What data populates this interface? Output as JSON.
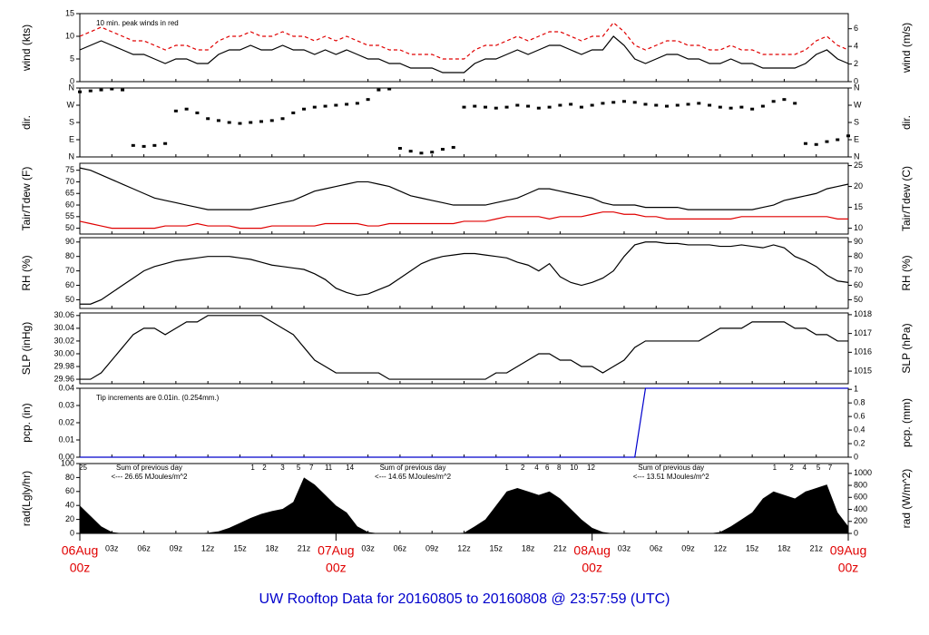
{
  "title": "UW Rooftop Data for 20160805  to  20160808 @ 23:57:59  (UTC)",
  "x_axis": {
    "xlim": [
      0,
      72
    ],
    "x": [
      0,
      1,
      2,
      3,
      4,
      5,
      6,
      7,
      8,
      9,
      10,
      11,
      12,
      13,
      14,
      15,
      16,
      17,
      18,
      19,
      20,
      21,
      22,
      23,
      24,
      25,
      26,
      27,
      28,
      29,
      30,
      31,
      32,
      33,
      34,
      35,
      36,
      37,
      38,
      39,
      40,
      41,
      42,
      43,
      44,
      45,
      46,
      47,
      48,
      49,
      50,
      51,
      52,
      53,
      54,
      55,
      56,
      57,
      58,
      59,
      60,
      61,
      62,
      63,
      64,
      65,
      66,
      67,
      68,
      69,
      70,
      71,
      72
    ],
    "xticks": [
      {
        "value": 3,
        "label": "03z"
      },
      {
        "value": 6,
        "label": "06z"
      },
      {
        "value": 9,
        "label": "09z"
      },
      {
        "value": 12,
        "label": "12z"
      },
      {
        "value": 15,
        "label": "15z"
      },
      {
        "value": 18,
        "label": "18z"
      },
      {
        "value": 21,
        "label": "21z"
      },
      {
        "value": 27,
        "label": "03z"
      },
      {
        "value": 30,
        "label": "06z"
      },
      {
        "value": 33,
        "label": "09z"
      },
      {
        "value": 36,
        "label": "12z"
      },
      {
        "value": 39,
        "label": "15z"
      },
      {
        "value": 42,
        "label": "18z"
      },
      {
        "value": 45,
        "label": "21z"
      },
      {
        "value": 51,
        "label": "03z"
      },
      {
        "value": 54,
        "label": "06z"
      },
      {
        "value": 57,
        "label": "09z"
      },
      {
        "value": 60,
        "label": "12z"
      },
      {
        "value": 63,
        "label": "15z"
      },
      {
        "value": 66,
        "label": "18z"
      },
      {
        "value": 69,
        "label": "21z"
      }
    ],
    "day_ticks": [
      {
        "value": 0,
        "label": "06Aug",
        "sublabel": "00z"
      },
      {
        "value": 24,
        "label": "07Aug",
        "sublabel": "00z"
      },
      {
        "value": 48,
        "label": "08Aug",
        "sublabel": "00z"
      },
      {
        "value": 72,
        "label": "09Aug",
        "sublabel": "00z"
      }
    ]
  },
  "chart_data": [
    {
      "type": "line",
      "ylabel": "wind (kts)",
      "y2label": "wind (m/s)",
      "annotation": "10 min. peak winds in red",
      "ylim": [
        0,
        15
      ],
      "yticks": [
        0,
        5,
        10,
        15
      ],
      "y2lim": [
        0,
        7.717
      ],
      "y2ticks": [
        0,
        2,
        4,
        6
      ],
      "series": [
        {
          "name": "peak",
          "color": "#e00000",
          "style": "dash",
          "values": [
            10,
            11,
            12,
            11,
            10,
            9,
            9,
            8,
            7,
            8,
            8,
            7,
            7,
            9,
            10,
            10,
            11,
            10,
            10,
            11,
            10,
            10,
            9,
            10,
            9,
            10,
            9,
            8,
            8,
            7,
            7,
            6,
            6,
            6,
            5,
            5,
            5,
            7,
            8,
            8,
            9,
            10,
            9,
            10,
            11,
            11,
            10,
            9,
            10,
            10,
            13,
            11,
            8,
            7,
            8,
            9,
            9,
            8,
            8,
            7,
            7,
            8,
            7,
            7,
            6,
            6,
            6,
            6,
            7,
            9,
            10,
            8,
            7
          ]
        },
        {
          "name": "wind",
          "color": "#000000",
          "values": [
            7,
            8,
            9,
            8,
            7,
            6,
            6,
            5,
            4,
            5,
            5,
            4,
            4,
            6,
            7,
            7,
            8,
            7,
            7,
            8,
            7,
            7,
            6,
            7,
            6,
            7,
            6,
            5,
            5,
            4,
            4,
            3,
            3,
            3,
            2,
            2,
            2,
            4,
            5,
            5,
            6,
            7,
            6,
            7,
            8,
            8,
            7,
            6,
            7,
            7,
            10,
            8,
            5,
            4,
            5,
            6,
            6,
            5,
            5,
            4,
            4,
            5,
            4,
            4,
            3,
            3,
            3,
            3,
            4,
            6,
            7,
            5,
            4
          ]
        }
      ]
    },
    {
      "type": "scatter",
      "ylabel": "dir.",
      "y2label": "dir.",
      "ylim": [
        0,
        360
      ],
      "yticks": [
        {
          "value": 0,
          "label": "N"
        },
        {
          "value": 90,
          "label": "E"
        },
        {
          "value": 180,
          "label": "S"
        },
        {
          "value": 270,
          "label": "W"
        },
        {
          "value": 360,
          "label": "N"
        }
      ],
      "y2lim": [
        0,
        360
      ],
      "y2ticks": [
        {
          "value": 0,
          "label": "N"
        },
        {
          "value": 90,
          "label": "E"
        },
        {
          "value": 180,
          "label": "S"
        },
        {
          "value": 270,
          "label": "W"
        },
        {
          "value": 360,
          "label": "N"
        }
      ],
      "series": [
        {
          "name": "dir",
          "color": "#000000",
          "values": [
            340,
            345,
            350,
            355,
            350,
            60,
            55,
            60,
            70,
            240,
            250,
            230,
            200,
            190,
            180,
            175,
            180,
            185,
            190,
            200,
            230,
            250,
            260,
            265,
            270,
            275,
            280,
            300,
            350,
            355,
            45,
            30,
            20,
            25,
            40,
            50,
            260,
            265,
            260,
            255,
            260,
            270,
            265,
            255,
            260,
            270,
            275,
            260,
            270,
            280,
            285,
            290,
            285,
            275,
            270,
            265,
            270,
            275,
            280,
            270,
            260,
            255,
            260,
            250,
            265,
            290,
            300,
            280,
            70,
            65,
            80,
            90,
            110
          ]
        }
      ]
    },
    {
      "type": "line",
      "ylabel": "Tair/Tdew (F)",
      "y2label": "Tair/Tdew (C)",
      "ylim": [
        47.5,
        78
      ],
      "yticks": [
        50,
        55,
        60,
        65,
        70,
        75
      ],
      "y2lim": [
        8.61,
        25.56
      ],
      "y2ticks": [
        10,
        15,
        20,
        25
      ],
      "series": [
        {
          "name": "Tair",
          "color": "#000000",
          "values": [
            76,
            75,
            73,
            71,
            69,
            67,
            65,
            63,
            62,
            61,
            60,
            59,
            58,
            58,
            58,
            58,
            58,
            59,
            60,
            61,
            62,
            64,
            66,
            67,
            68,
            69,
            70,
            70,
            69,
            68,
            66,
            64,
            63,
            62,
            61,
            60,
            60,
            60,
            60,
            61,
            62,
            63,
            65,
            67,
            67,
            66,
            65,
            64,
            63,
            61,
            60,
            60,
            60,
            59,
            59,
            59,
            59,
            58,
            58,
            58,
            58,
            58,
            58,
            58,
            59,
            60,
            62,
            63,
            64,
            65,
            67,
            68,
            69
          ]
        },
        {
          "name": "Tdew",
          "color": "#e00000",
          "values": [
            53,
            52,
            51,
            50,
            50,
            50,
            50,
            50,
            51,
            51,
            51,
            52,
            51,
            51,
            51,
            50,
            50,
            50,
            51,
            51,
            51,
            51,
            51,
            52,
            52,
            52,
            52,
            51,
            51,
            52,
            52,
            52,
            52,
            52,
            52,
            52,
            53,
            53,
            53,
            54,
            55,
            55,
            55,
            55,
            54,
            55,
            55,
            55,
            56,
            57,
            57,
            56,
            56,
            55,
            55,
            54,
            54,
            54,
            54,
            54,
            54,
            54,
            55,
            55,
            55,
            55,
            55,
            55,
            55,
            55,
            55,
            54,
            54
          ]
        }
      ]
    },
    {
      "type": "line",
      "ylabel": "RH (%)",
      "y2label": "RH (%)",
      "ylim": [
        44,
        93
      ],
      "yticks": [
        50,
        60,
        70,
        80,
        90
      ],
      "y2lim": [
        44,
        93
      ],
      "y2ticks": [
        50,
        60,
        70,
        80,
        90
      ],
      "series": [
        {
          "name": "RH",
          "color": "#000000",
          "values": [
            47,
            47,
            50,
            55,
            60,
            65,
            70,
            73,
            75,
            77,
            78,
            79,
            80,
            80,
            80,
            79,
            78,
            76,
            74,
            73,
            72,
            71,
            68,
            64,
            58,
            55,
            53,
            54,
            57,
            60,
            65,
            70,
            75,
            78,
            80,
            81,
            82,
            82,
            81,
            80,
            79,
            76,
            74,
            70,
            75,
            66,
            62,
            60,
            62,
            65,
            70,
            80,
            88,
            90,
            90,
            89,
            89,
            88,
            88,
            88,
            87,
            87,
            88,
            87,
            86,
            88,
            86,
            80,
            77,
            73,
            67,
            63,
            62
          ]
        }
      ]
    },
    {
      "type": "line",
      "ylabel": "SLP (inHg)",
      "y2label": "SLP (hPa)",
      "ylim": [
        29.953,
        30.064
      ],
      "yticks": [
        29.96,
        29.98,
        {
          "value": 30,
          "label": "30.00"
        },
        30.02,
        30.04,
        30.06
      ],
      "y2lim": [
        1014.33,
        1018.09
      ],
      "y2ticks": [
        1015,
        1016,
        1017,
        1018
      ],
      "series": [
        {
          "name": "SLP",
          "color": "#000000",
          "values": [
            29.96,
            29.96,
            29.97,
            29.99,
            30.01,
            30.03,
            30.04,
            30.04,
            30.03,
            30.04,
            30.05,
            30.05,
            30.06,
            30.06,
            30.06,
            30.06,
            30.06,
            30.06,
            30.05,
            30.04,
            30.03,
            30.01,
            29.99,
            29.98,
            29.97,
            29.97,
            29.97,
            29.97,
            29.97,
            29.96,
            29.96,
            29.96,
            29.96,
            29.96,
            29.96,
            29.96,
            29.96,
            29.96,
            29.96,
            29.97,
            29.97,
            29.98,
            29.99,
            30.0,
            30.0,
            29.99,
            29.99,
            29.98,
            29.98,
            29.97,
            29.98,
            29.99,
            30.01,
            30.02,
            30.02,
            30.02,
            30.02,
            30.02,
            30.02,
            30.03,
            30.04,
            30.04,
            30.04,
            30.05,
            30.05,
            30.05,
            30.05,
            30.04,
            30.04,
            30.03,
            30.03,
            30.02,
            30.02
          ]
        }
      ]
    },
    {
      "type": "line",
      "ylabel": "pcp. (in)",
      "y2label": "pcp. (mm)",
      "annotation": "Tip increments are 0.01in. (0.254mm.)",
      "ylim": [
        0,
        0.04
      ],
      "yticks": [
        {
          "value": 0,
          "label": "0.00"
        },
        0.01,
        0.02,
        0.03,
        0.04
      ],
      "y2lim": [
        0,
        1.016
      ],
      "y2ticks": [
        0,
        0.2,
        0.4,
        0.6,
        0.8,
        1
      ],
      "series": [
        {
          "name": "pcp",
          "color": "#0000cc",
          "values": [
            0,
            0,
            0,
            0,
            0,
            0,
            0,
            0,
            0,
            0,
            0,
            0,
            0,
            0,
            0,
            0,
            0,
            0,
            0,
            0,
            0,
            0,
            0,
            0,
            0,
            0,
            0,
            0,
            0,
            0,
            0,
            0,
            0,
            0,
            0,
            0,
            0,
            0,
            0,
            0,
            0,
            0,
            0,
            0,
            0,
            0,
            0,
            0,
            0,
            0,
            0,
            0,
            0,
            0.04,
            0.04,
            0.04,
            0.04,
            0.04,
            0.04,
            0.04,
            0.04,
            0.04,
            0.04,
            0.04,
            0.04,
            0.04,
            0.04,
            0.04,
            0.04,
            0.04,
            0.04,
            0.04,
            0.04
          ]
        }
      ]
    },
    {
      "type": "area",
      "ylabel": "rad(Lgly/hr)",
      "y2label": "rad (W/m^2)",
      "ylim": [
        0,
        100
      ],
      "yticks": [
        0,
        20,
        40,
        60,
        80,
        100
      ],
      "y2lim": [
        0,
        1163
      ],
      "y2ticks": [
        0,
        200,
        400,
        600,
        800,
        1000
      ],
      "annotations": [
        {
          "x": 6.5,
          "label": "Sum of previous day",
          "sublabel": "<--- 26.65 MJoules/m^2"
        },
        {
          "x": 31.2,
          "label": "Sum of previous day",
          "sublabel": "<--- 14.65 MJoules/m^2"
        },
        {
          "x": 55.4,
          "label": "Sum of previous day",
          "sublabel": "<--- 13.51 MJoules/m^2"
        }
      ],
      "hour_marks": [
        {
          "value": 0.3,
          "label": "25"
        },
        {
          "value": 16.2,
          "label": "1"
        },
        {
          "value": 17.3,
          "label": "2"
        },
        {
          "value": 19,
          "label": "3"
        },
        {
          "value": 20.5,
          "label": "5"
        },
        {
          "value": 21.7,
          "label": "7"
        },
        {
          "value": 23.3,
          "label": "11"
        },
        {
          "value": 25.3,
          "label": "14"
        },
        {
          "value": 40,
          "label": "1"
        },
        {
          "value": 41.5,
          "label": "2"
        },
        {
          "value": 42.8,
          "label": "4"
        },
        {
          "value": 43.8,
          "label": "6"
        },
        {
          "value": 44.9,
          "label": "8"
        },
        {
          "value": 46.3,
          "label": "10"
        },
        {
          "value": 47.9,
          "label": "12"
        },
        {
          "value": 65.1,
          "label": "1"
        },
        {
          "value": 66.7,
          "label": "2"
        },
        {
          "value": 67.9,
          "label": "4"
        },
        {
          "value": 69.2,
          "label": "5"
        },
        {
          "value": 70.3,
          "label": "7"
        }
      ],
      "series": [
        {
          "name": "rad",
          "color": "#000000",
          "values": [
            40,
            25,
            10,
            2,
            0,
            0,
            0,
            0,
            0,
            0,
            0,
            0,
            1,
            3,
            8,
            15,
            22,
            28,
            32,
            35,
            45,
            80,
            70,
            55,
            40,
            30,
            10,
            2,
            0,
            0,
            0,
            0,
            0,
            0,
            0,
            0,
            1,
            10,
            20,
            40,
            60,
            65,
            60,
            55,
            60,
            50,
            35,
            20,
            8,
            2,
            0,
            0,
            0,
            0,
            0,
            0,
            0,
            0,
            0,
            0,
            2,
            10,
            20,
            30,
            50,
            60,
            55,
            50,
            60,
            65,
            70,
            30,
            10
          ]
        }
      ]
    }
  ]
}
